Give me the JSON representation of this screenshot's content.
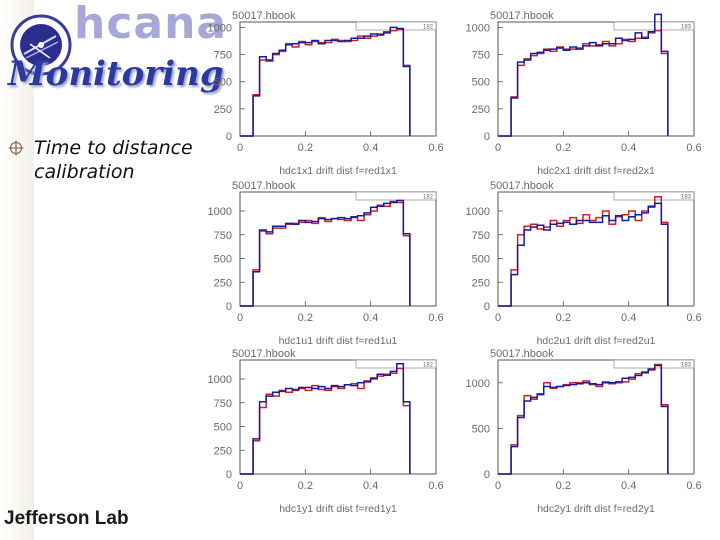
{
  "app_title": "hcana",
  "page_title": "Monitoring",
  "bullets": [
    {
      "text": "Time to distance calibration"
    }
  ],
  "footer": {
    "logo_text": "Jefferson Lab"
  },
  "colors": {
    "series_red": "#cc2222",
    "series_blue": "#1a1aa0",
    "title_blue": "#2b3aa0",
    "app_title": "#a7a7d8"
  },
  "icons": {
    "logo": "hcana-logo-icon",
    "bullet": "target-bullet-icon"
  },
  "chart_data": [
    {
      "type": "histogram",
      "file": "50017.hbook",
      "id": "182",
      "xlabel": "hdc1x1 drift dist f=red1x1",
      "x_ticks": [
        "0",
        "0.2",
        "0.4",
        "0.6"
      ],
      "y_ticks": [
        "0",
        "250",
        "500",
        "750",
        "1000"
      ],
      "xlim": [
        0,
        0.6
      ],
      "ylim": [
        0,
        1050
      ],
      "bin_edges": [
        0,
        0.02,
        0.04,
        0.06,
        0.08,
        0.1,
        0.12,
        0.14,
        0.16,
        0.18,
        0.2,
        0.22,
        0.24,
        0.26,
        0.28,
        0.3,
        0.32,
        0.34,
        0.36,
        0.38,
        0.4,
        0.42,
        0.44,
        0.46,
        0.48,
        0.5,
        0.52
      ],
      "series": [
        {
          "color": "red",
          "values": [
            0,
            0,
            380,
            700,
            690,
            750,
            780,
            850,
            820,
            870,
            840,
            870,
            860,
            860,
            890,
            880,
            870,
            880,
            920,
            900,
            920,
            940,
            960,
            970,
            980,
            650
          ]
        },
        {
          "color": "blue",
          "values": [
            0,
            0,
            370,
            730,
            700,
            760,
            790,
            840,
            850,
            860,
            860,
            880,
            850,
            880,
            880,
            870,
            880,
            900,
            900,
            920,
            940,
            930,
            950,
            1000,
            990,
            640
          ]
        }
      ]
    },
    {
      "type": "histogram",
      "file": "50017.hbook",
      "id": "183",
      "xlabel": "hdc2x1 drift dist f=red2x1",
      "x_ticks": [
        "0",
        "0.2",
        "0.4",
        "0.6"
      ],
      "y_ticks": [
        "0",
        "250",
        "500",
        "750",
        "1000"
      ],
      "xlim": [
        0,
        0.6
      ],
      "ylim": [
        0,
        1050
      ],
      "bin_edges": [
        0,
        0.02,
        0.04,
        0.06,
        0.08,
        0.1,
        0.12,
        0.14,
        0.16,
        0.18,
        0.2,
        0.22,
        0.24,
        0.26,
        0.28,
        0.3,
        0.32,
        0.34,
        0.36,
        0.38,
        0.4,
        0.42,
        0.44,
        0.46,
        0.48,
        0.5,
        0.52
      ],
      "series": [
        {
          "color": "red",
          "values": [
            0,
            0,
            360,
            650,
            710,
            740,
            760,
            800,
            780,
            820,
            800,
            800,
            810,
            850,
            830,
            840,
            870,
            830,
            850,
            890,
            870,
            900,
            910,
            950,
            970,
            760
          ]
        },
        {
          "color": "blue",
          "values": [
            0,
            0,
            350,
            680,
            700,
            760,
            770,
            790,
            800,
            810,
            790,
            820,
            800,
            830,
            860,
            830,
            850,
            850,
            900,
            880,
            890,
            950,
            900,
            960,
            1120,
            780
          ]
        }
      ]
    },
    {
      "type": "histogram",
      "file": "50017.hbook",
      "id": "182",
      "xlabel": "hdc1u1 drift dist f=red1u1",
      "x_ticks": [
        "0",
        "0.2",
        "0.4",
        "0.6"
      ],
      "y_ticks": [
        "0",
        "250",
        "500",
        "750",
        "1000"
      ],
      "xlim": [
        0,
        0.6
      ],
      "ylim": [
        0,
        1200
      ],
      "bin_edges": [
        0,
        0.02,
        0.04,
        0.06,
        0.08,
        0.1,
        0.12,
        0.14,
        0.16,
        0.18,
        0.2,
        0.22,
        0.24,
        0.26,
        0.28,
        0.3,
        0.32,
        0.34,
        0.36,
        0.38,
        0.4,
        0.42,
        0.44,
        0.46,
        0.48,
        0.5,
        0.52
      ],
      "series": [
        {
          "color": "red",
          "values": [
            0,
            0,
            380,
            790,
            760,
            820,
            820,
            860,
            870,
            880,
            900,
            870,
            930,
            890,
            920,
            910,
            900,
            930,
            900,
            960,
            1000,
            1060,
            1050,
            1100,
            1090,
            740
          ]
        },
        {
          "color": "blue",
          "values": [
            0,
            0,
            360,
            800,
            780,
            840,
            840,
            870,
            860,
            900,
            880,
            890,
            920,
            910,
            920,
            930,
            920,
            940,
            950,
            980,
            1040,
            1050,
            1080,
            1090,
            1110,
            760
          ]
        }
      ]
    },
    {
      "type": "histogram",
      "file": "50017.hbook",
      "id": "183",
      "xlabel": "hdc2u1 drift dist f=red2u1",
      "x_ticks": [
        "0",
        "0.2",
        "0.4",
        "0.6"
      ],
      "y_ticks": [
        "0",
        "250",
        "500",
        "750",
        "1000"
      ],
      "xlim": [
        0,
        0.6
      ],
      "ylim": [
        0,
        1200
      ],
      "bin_edges": [
        0,
        0.02,
        0.04,
        0.06,
        0.08,
        0.1,
        0.12,
        0.14,
        0.16,
        0.18,
        0.2,
        0.22,
        0.24,
        0.26,
        0.28,
        0.3,
        0.32,
        0.34,
        0.36,
        0.38,
        0.4,
        0.42,
        0.44,
        0.46,
        0.48,
        0.5,
        0.52
      ],
      "series": [
        {
          "color": "red",
          "values": [
            0,
            0,
            380,
            750,
            840,
            860,
            810,
            830,
            900,
            840,
            900,
            930,
            870,
            960,
            900,
            930,
            1000,
            860,
            940,
            960,
            1000,
            900,
            1000,
            1040,
            1150,
            880
          ]
        },
        {
          "color": "blue",
          "values": [
            0,
            0,
            330,
            640,
            800,
            830,
            850,
            800,
            860,
            870,
            880,
            860,
            900,
            900,
            880,
            880,
            950,
            900,
            950,
            900,
            940,
            960,
            980,
            1050,
            1080,
            860
          ]
        }
      ]
    },
    {
      "type": "histogram",
      "file": "50017.hbook",
      "id": "182",
      "xlabel": "hdc1y1 drift dist f=red1y1",
      "x_ticks": [
        "0",
        "0.2",
        "0.4",
        "0.6"
      ],
      "y_ticks": [
        "0",
        "250",
        "500",
        "750",
        "1000"
      ],
      "xlim": [
        0,
        0.6
      ],
      "ylim": [
        0,
        1200
      ],
      "bin_edges": [
        0,
        0.02,
        0.04,
        0.06,
        0.08,
        0.1,
        0.12,
        0.14,
        0.16,
        0.18,
        0.2,
        0.22,
        0.24,
        0.26,
        0.28,
        0.3,
        0.32,
        0.34,
        0.36,
        0.38,
        0.4,
        0.42,
        0.44,
        0.46,
        0.48,
        0.5,
        0.52
      ],
      "series": [
        {
          "color": "red",
          "values": [
            0,
            0,
            350,
            700,
            840,
            820,
            880,
            860,
            880,
            900,
            880,
            930,
            890,
            880,
            920,
            900,
            940,
            950,
            900,
            980,
            1000,
            1030,
            1050,
            1060,
            1110,
            720
          ]
        },
        {
          "color": "blue",
          "values": [
            0,
            0,
            370,
            760,
            820,
            860,
            870,
            900,
            890,
            910,
            910,
            900,
            920,
            900,
            930,
            920,
            940,
            930,
            960,
            970,
            1010,
            1050,
            1040,
            1080,
            1160,
            760
          ]
        }
      ]
    },
    {
      "type": "histogram",
      "file": "50017.hbook",
      "id": "183",
      "xlabel": "hdc2y1 drift dist f=red2y1",
      "x_ticks": [
        "0",
        "0.2",
        "0.4",
        "0.6"
      ],
      "y_ticks": [
        "0",
        "500",
        "1000"
      ],
      "xlim": [
        0,
        0.6
      ],
      "ylim": [
        0,
        1250
      ],
      "bin_edges": [
        0,
        0.02,
        0.04,
        0.06,
        0.08,
        0.1,
        0.12,
        0.14,
        0.16,
        0.18,
        0.2,
        0.22,
        0.24,
        0.26,
        0.28,
        0.3,
        0.32,
        0.34,
        0.36,
        0.38,
        0.4,
        0.42,
        0.44,
        0.46,
        0.48,
        0.5,
        0.52
      ],
      "series": [
        {
          "color": "red",
          "values": [
            0,
            0,
            320,
            640,
            860,
            820,
            880,
            1000,
            940,
            960,
            980,
            1000,
            1000,
            1020,
            980,
            960,
            1010,
            990,
            1000,
            1010,
            1040,
            1100,
            1120,
            1140,
            1200,
            760
          ]
        },
        {
          "color": "blue",
          "values": [
            0,
            0,
            300,
            620,
            800,
            840,
            870,
            960,
            950,
            960,
            970,
            980,
            990,
            1000,
            990,
            980,
            1000,
            1000,
            1010,
            1050,
            1060,
            1080,
            1110,
            1150,
            1190,
            740
          ]
        }
      ]
    }
  ]
}
